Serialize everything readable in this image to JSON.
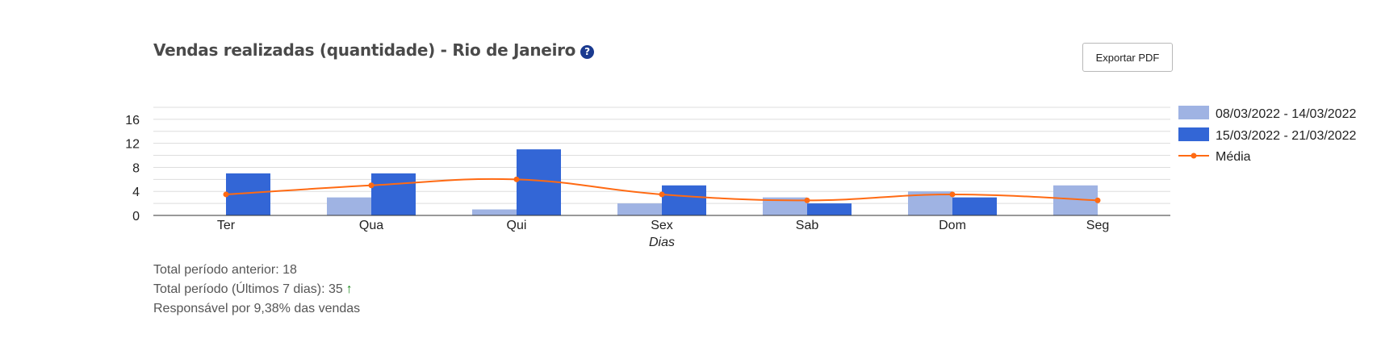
{
  "header": {
    "title": "Vendas realizadas (quantidade) - Rio de Janeiro",
    "help_icon": "?",
    "export_label": "Exportar PDF"
  },
  "chart_data": {
    "type": "bar",
    "title": "Vendas realizadas (quantidade) - Rio de Janeiro",
    "xlabel": "Dias",
    "ylabel": "",
    "categories": [
      "Ter",
      "Qua",
      "Qui",
      "Sex",
      "Sab",
      "Dom",
      "Seg"
    ],
    "ylim": [
      0,
      18
    ],
    "yticks": [
      0,
      4,
      8,
      12,
      16
    ],
    "grid": true,
    "legend_position": "right",
    "series": [
      {
        "name": "08/03/2022 - 14/03/2022",
        "type": "bar",
        "color": "#9fb3e3",
        "values": [
          0,
          3,
          1,
          2,
          3,
          4,
          5
        ]
      },
      {
        "name": "15/03/2022 - 21/03/2022",
        "type": "bar",
        "color": "#3366d6",
        "values": [
          7,
          7,
          11,
          5,
          2,
          3,
          0
        ]
      },
      {
        "name": "Média",
        "type": "line",
        "color": "#ff6a13",
        "values": [
          3.5,
          5,
          6,
          3.5,
          2.5,
          3.5,
          2.5
        ]
      }
    ]
  },
  "footer": {
    "previous_total": "Total período anterior: 18",
    "current_total": "Total período (Últimos 7 dias):  35",
    "trend_icon": "arrow-up-icon",
    "share": "Responsável por 9,38% das vendas"
  }
}
